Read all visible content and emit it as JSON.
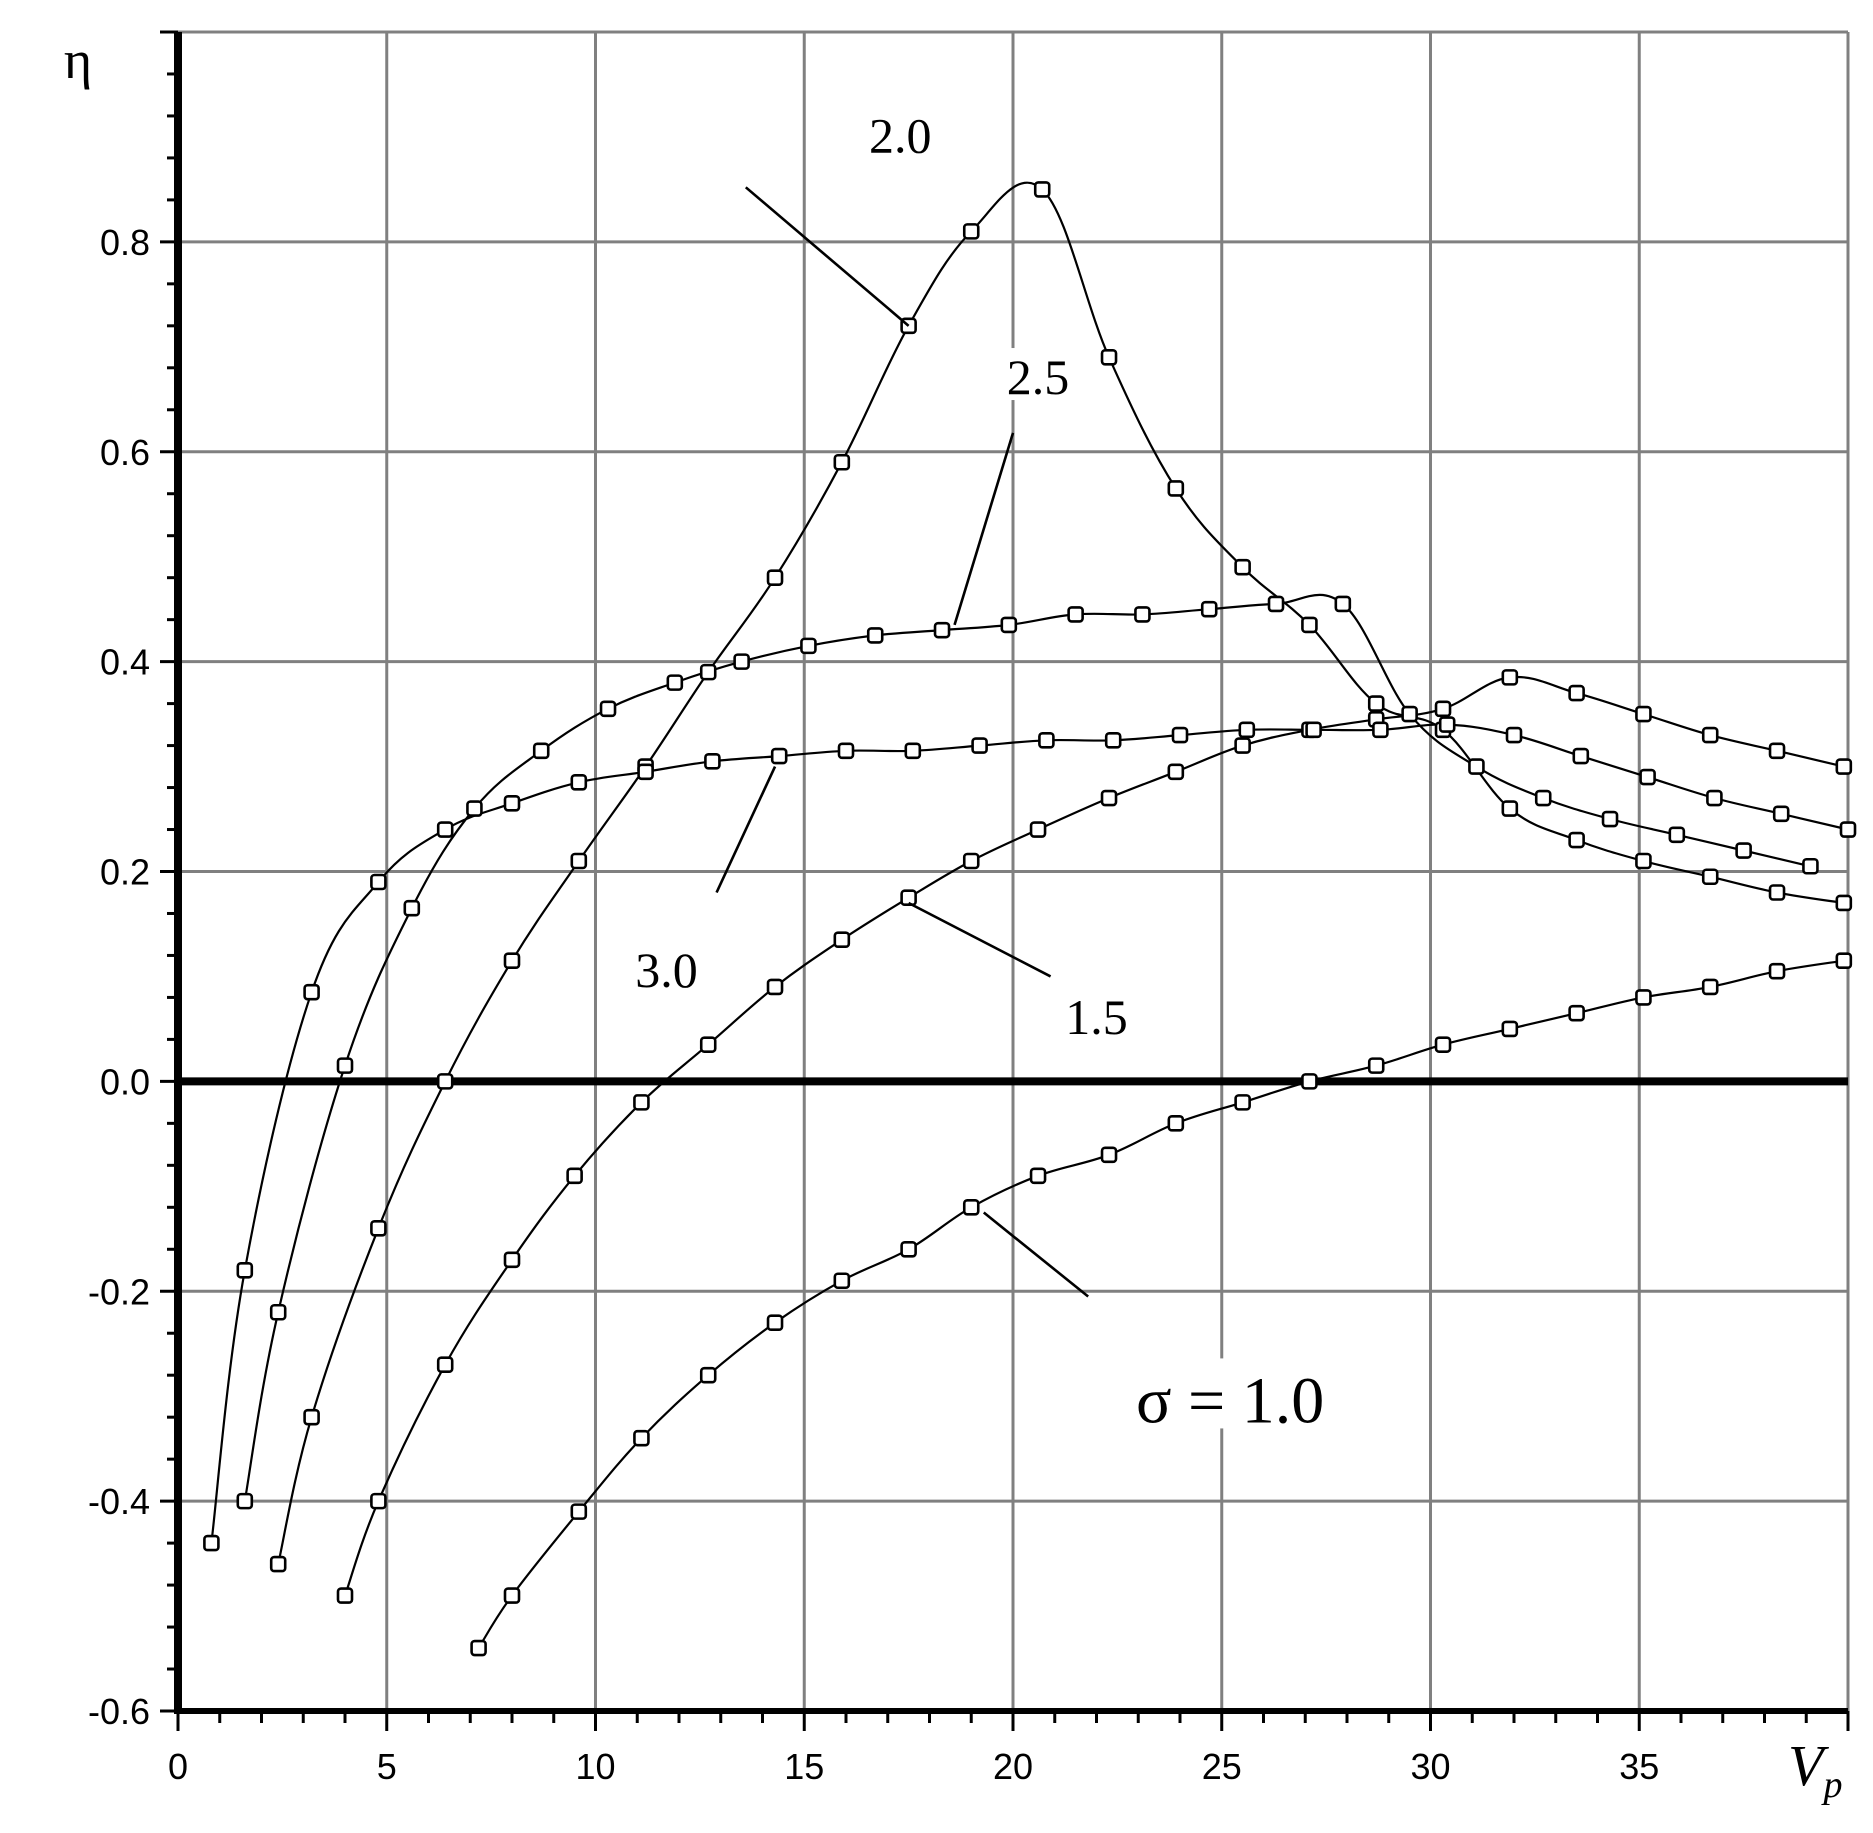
{
  "chart_data": {
    "type": "line",
    "xlabel": "V",
    "xlabel_sub": "p",
    "ylabel": "η",
    "xlim": [
      0,
      40
    ],
    "ylim": [
      -0.6,
      1.0
    ],
    "x_ticks": [
      0,
      5,
      10,
      15,
      20,
      25,
      30,
      35
    ],
    "x_tick_labels": [
      "0",
      "5",
      "10",
      "15",
      "20",
      "25",
      "30",
      "35"
    ],
    "y_ticks": [
      -0.6,
      -0.4,
      -0.2,
      0.0,
      0.2,
      0.4,
      0.6,
      0.8
    ],
    "y_tick_labels": [
      "-0.6",
      "-0.4",
      "-0.2",
      "0.0",
      "0.2",
      "0.4",
      "0.6",
      "0.8"
    ],
    "grid": true,
    "zero_line": true,
    "marker": "square",
    "series": [
      {
        "name": "σ = 1.0",
        "label": "σ = 1.0",
        "x": [
          7.2,
          8.0,
          9.6,
          11.1,
          12.7,
          14.3,
          15.9,
          17.5,
          19.0,
          20.6,
          22.3,
          23.9,
          25.5,
          27.1,
          28.7,
          30.3,
          31.9,
          33.5,
          35.1,
          36.7,
          38.3,
          39.9
        ],
        "y": [
          -0.54,
          -0.49,
          -0.41,
          -0.34,
          -0.28,
          -0.23,
          -0.19,
          -0.16,
          -0.12,
          -0.09,
          -0.07,
          -0.04,
          -0.02,
          0.0,
          0.015,
          0.035,
          0.05,
          0.065,
          0.08,
          0.09,
          0.105,
          0.115
        ]
      },
      {
        "name": "1.5",
        "label": "1.5",
        "x": [
          4.0,
          4.8,
          6.4,
          8.0,
          9.5,
          11.1,
          12.7,
          14.3,
          15.9,
          17.5,
          19.0,
          20.6,
          22.3,
          23.9,
          25.5,
          27.1,
          28.7,
          30.3,
          31.9,
          33.5,
          35.1,
          36.7,
          38.3,
          39.9
        ],
        "y": [
          -0.49,
          -0.4,
          -0.27,
          -0.17,
          -0.09,
          -0.02,
          0.035,
          0.09,
          0.135,
          0.175,
          0.21,
          0.24,
          0.27,
          0.295,
          0.32,
          0.335,
          0.345,
          0.355,
          0.385,
          0.37,
          0.35,
          0.33,
          0.315,
          0.3
        ]
      },
      {
        "name": "2.0",
        "label": "2.0",
        "x": [
          2.4,
          3.2,
          4.8,
          6.4,
          8.0,
          9.6,
          11.2,
          12.7,
          14.3,
          15.9,
          17.5,
          19.0,
          20.7,
          22.3,
          23.9,
          25.5,
          27.1,
          28.7,
          30.3,
          31.9,
          33.5,
          35.1,
          36.7,
          38.3,
          39.9
        ],
        "y": [
          -0.46,
          -0.32,
          -0.14,
          0.0,
          0.115,
          0.21,
          0.3,
          0.39,
          0.48,
          0.59,
          0.72,
          0.81,
          0.85,
          0.69,
          0.565,
          0.49,
          0.435,
          0.36,
          0.335,
          0.26,
          0.23,
          0.21,
          0.195,
          0.18,
          0.17
        ]
      },
      {
        "name": "2.5",
        "label": "2.5",
        "x": [
          1.6,
          2.4,
          4.0,
          5.6,
          7.1,
          8.7,
          10.3,
          11.9,
          13.5,
          15.1,
          16.7,
          18.3,
          19.9,
          21.5,
          23.1,
          24.7,
          26.3,
          27.9,
          29.5,
          31.1,
          32.7,
          34.3,
          35.9,
          37.5,
          39.1
        ],
        "y": [
          -0.4,
          -0.22,
          0.015,
          0.165,
          0.26,
          0.315,
          0.355,
          0.38,
          0.4,
          0.415,
          0.425,
          0.43,
          0.435,
          0.445,
          0.445,
          0.45,
          0.455,
          0.455,
          0.35,
          0.3,
          0.27,
          0.25,
          0.235,
          0.22,
          0.205
        ]
      },
      {
        "name": "3.0",
        "label": "3.0",
        "x": [
          0.8,
          1.6,
          3.2,
          4.8,
          6.4,
          8.0,
          9.6,
          11.2,
          12.8,
          14.4,
          16.0,
          17.6,
          19.2,
          20.8,
          22.4,
          24.0,
          25.6,
          27.2,
          28.8,
          30.4,
          32.0,
          33.6,
          35.2,
          36.8,
          38.4,
          40.0
        ],
        "y": [
          -0.44,
          -0.18,
          0.085,
          0.19,
          0.24,
          0.265,
          0.285,
          0.295,
          0.305,
          0.31,
          0.315,
          0.315,
          0.32,
          0.325,
          0.325,
          0.33,
          0.335,
          0.335,
          0.335,
          0.34,
          0.33,
          0.31,
          0.29,
          0.27,
          0.255,
          0.24
        ]
      }
    ],
    "annotations": [
      {
        "text": "2.0",
        "series": "2.0"
      },
      {
        "text": "2.5",
        "series": "2.5"
      },
      {
        "text": "3.0",
        "series": "3.0"
      },
      {
        "text": "1.5",
        "series": "1.5"
      },
      {
        "text": "σ = 1.0",
        "series": "σ = 1.0"
      }
    ]
  }
}
